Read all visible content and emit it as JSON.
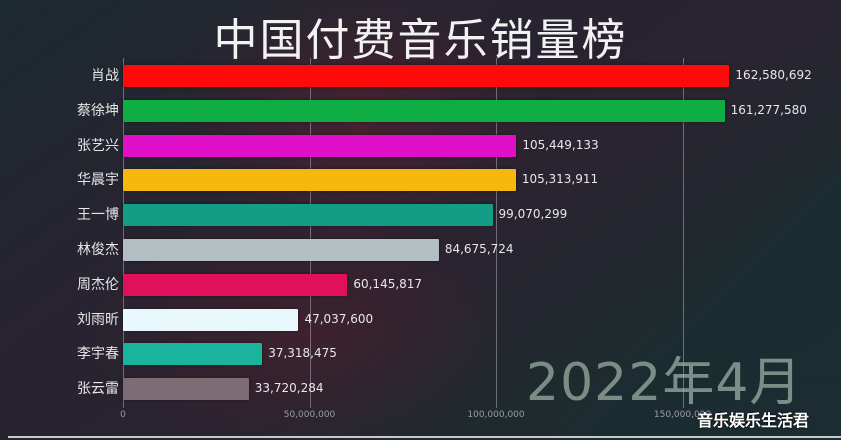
{
  "chart_data": {
    "type": "bar",
    "orientation": "horizontal",
    "title": "中国付费音乐销量榜",
    "period": "2022年4月",
    "xlabel": "",
    "ylabel": "",
    "xlim": [
      0,
      180000000
    ],
    "grid": true,
    "x_ticks": [
      "0",
      "50,000,000",
      "100,000,000",
      "150,000,000"
    ],
    "x_tick_values": [
      0,
      50000000,
      100000000,
      150000000
    ],
    "categories": [
      "肖战",
      "蔡徐坤",
      "张艺兴",
      "华晨宇",
      "王一博",
      "林俊杰",
      "周杰伦",
      "刘雨昕",
      "李宇春",
      "张云雷"
    ],
    "values": [
      162580692,
      161277580,
      105449133,
      105313911,
      99070299,
      84675724,
      60145817,
      47037600,
      37318475,
      33720284
    ],
    "value_labels": [
      "162,580,692",
      "161,277,580",
      "105,449,133",
      "105,313,911",
      "99,070,299",
      "84,675,724",
      "60,145,817",
      "47,037,600",
      "37,318,475",
      "33,720,284"
    ],
    "colors": [
      "#ff0a0a",
      "#0fae45",
      "#e010c8",
      "#f6b80c",
      "#139c86",
      "#b4bfc4",
      "#e0105a",
      "#e8f8fc",
      "#19b39e",
      "#7e6c74"
    ]
  },
  "watermark": "音乐娱乐生活君"
}
